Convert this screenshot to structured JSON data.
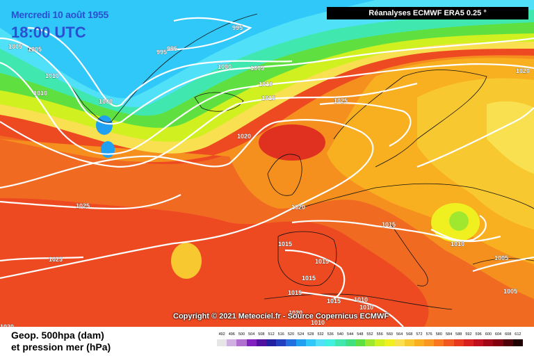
{
  "header": {
    "date": "Mercredi 10 août 1955",
    "time": "18:00 UTC",
    "banner": "Réanalyses ECMWF ERA5 0.25 °"
  },
  "credit": "Copyright © 2021 Meteociel.fr - Source Copernicus ECMWF",
  "legend": {
    "line1": "Geop. 500hpa (dam)",
    "line2": "et pression mer (hPa)",
    "scale_values": [
      "492",
      "496",
      "500",
      "504",
      "508",
      "512",
      "516",
      "520",
      "524",
      "528",
      "532",
      "536",
      "540",
      "544",
      "548",
      "552",
      "556",
      "560",
      "564",
      "568",
      "572",
      "576",
      "580",
      "584",
      "588",
      "592",
      "596",
      "600",
      "604",
      "608",
      "612"
    ],
    "scale_colors": [
      "#e6e6e6",
      "#d0b0e0",
      "#b070d0",
      "#8020c0",
      "#5010a0",
      "#2020a0",
      "#2040c0",
      "#2070e0",
      "#20a0f0",
      "#30c8f8",
      "#50e0f8",
      "#40f0e0",
      "#40e8b0",
      "#40e080",
      "#60e040",
      "#a0e830",
      "#d0f020",
      "#f0f020",
      "#f8e050",
      "#f8c830",
      "#f8b020",
      "#f89820",
      "#f87820",
      "#f05820",
      "#e83820",
      "#d82020",
      "#c01020",
      "#a00818",
      "#800010",
      "#500008",
      "#200000"
    ]
  },
  "isobars": [
    "995",
    "1005",
    "1005",
    "1010",
    "1010",
    "1000",
    "995",
    "995",
    "1000",
    "1005",
    "1010",
    "1015",
    "1025",
    "1020",
    "1020",
    "1020",
    "1025",
    "1015",
    "1010",
    "1015",
    "1025",
    "1015",
    "1015",
    "1015",
    "1015",
    "1010",
    "1010",
    "1005",
    "1005",
    "1020",
    "1020",
    "1010"
  ]
}
